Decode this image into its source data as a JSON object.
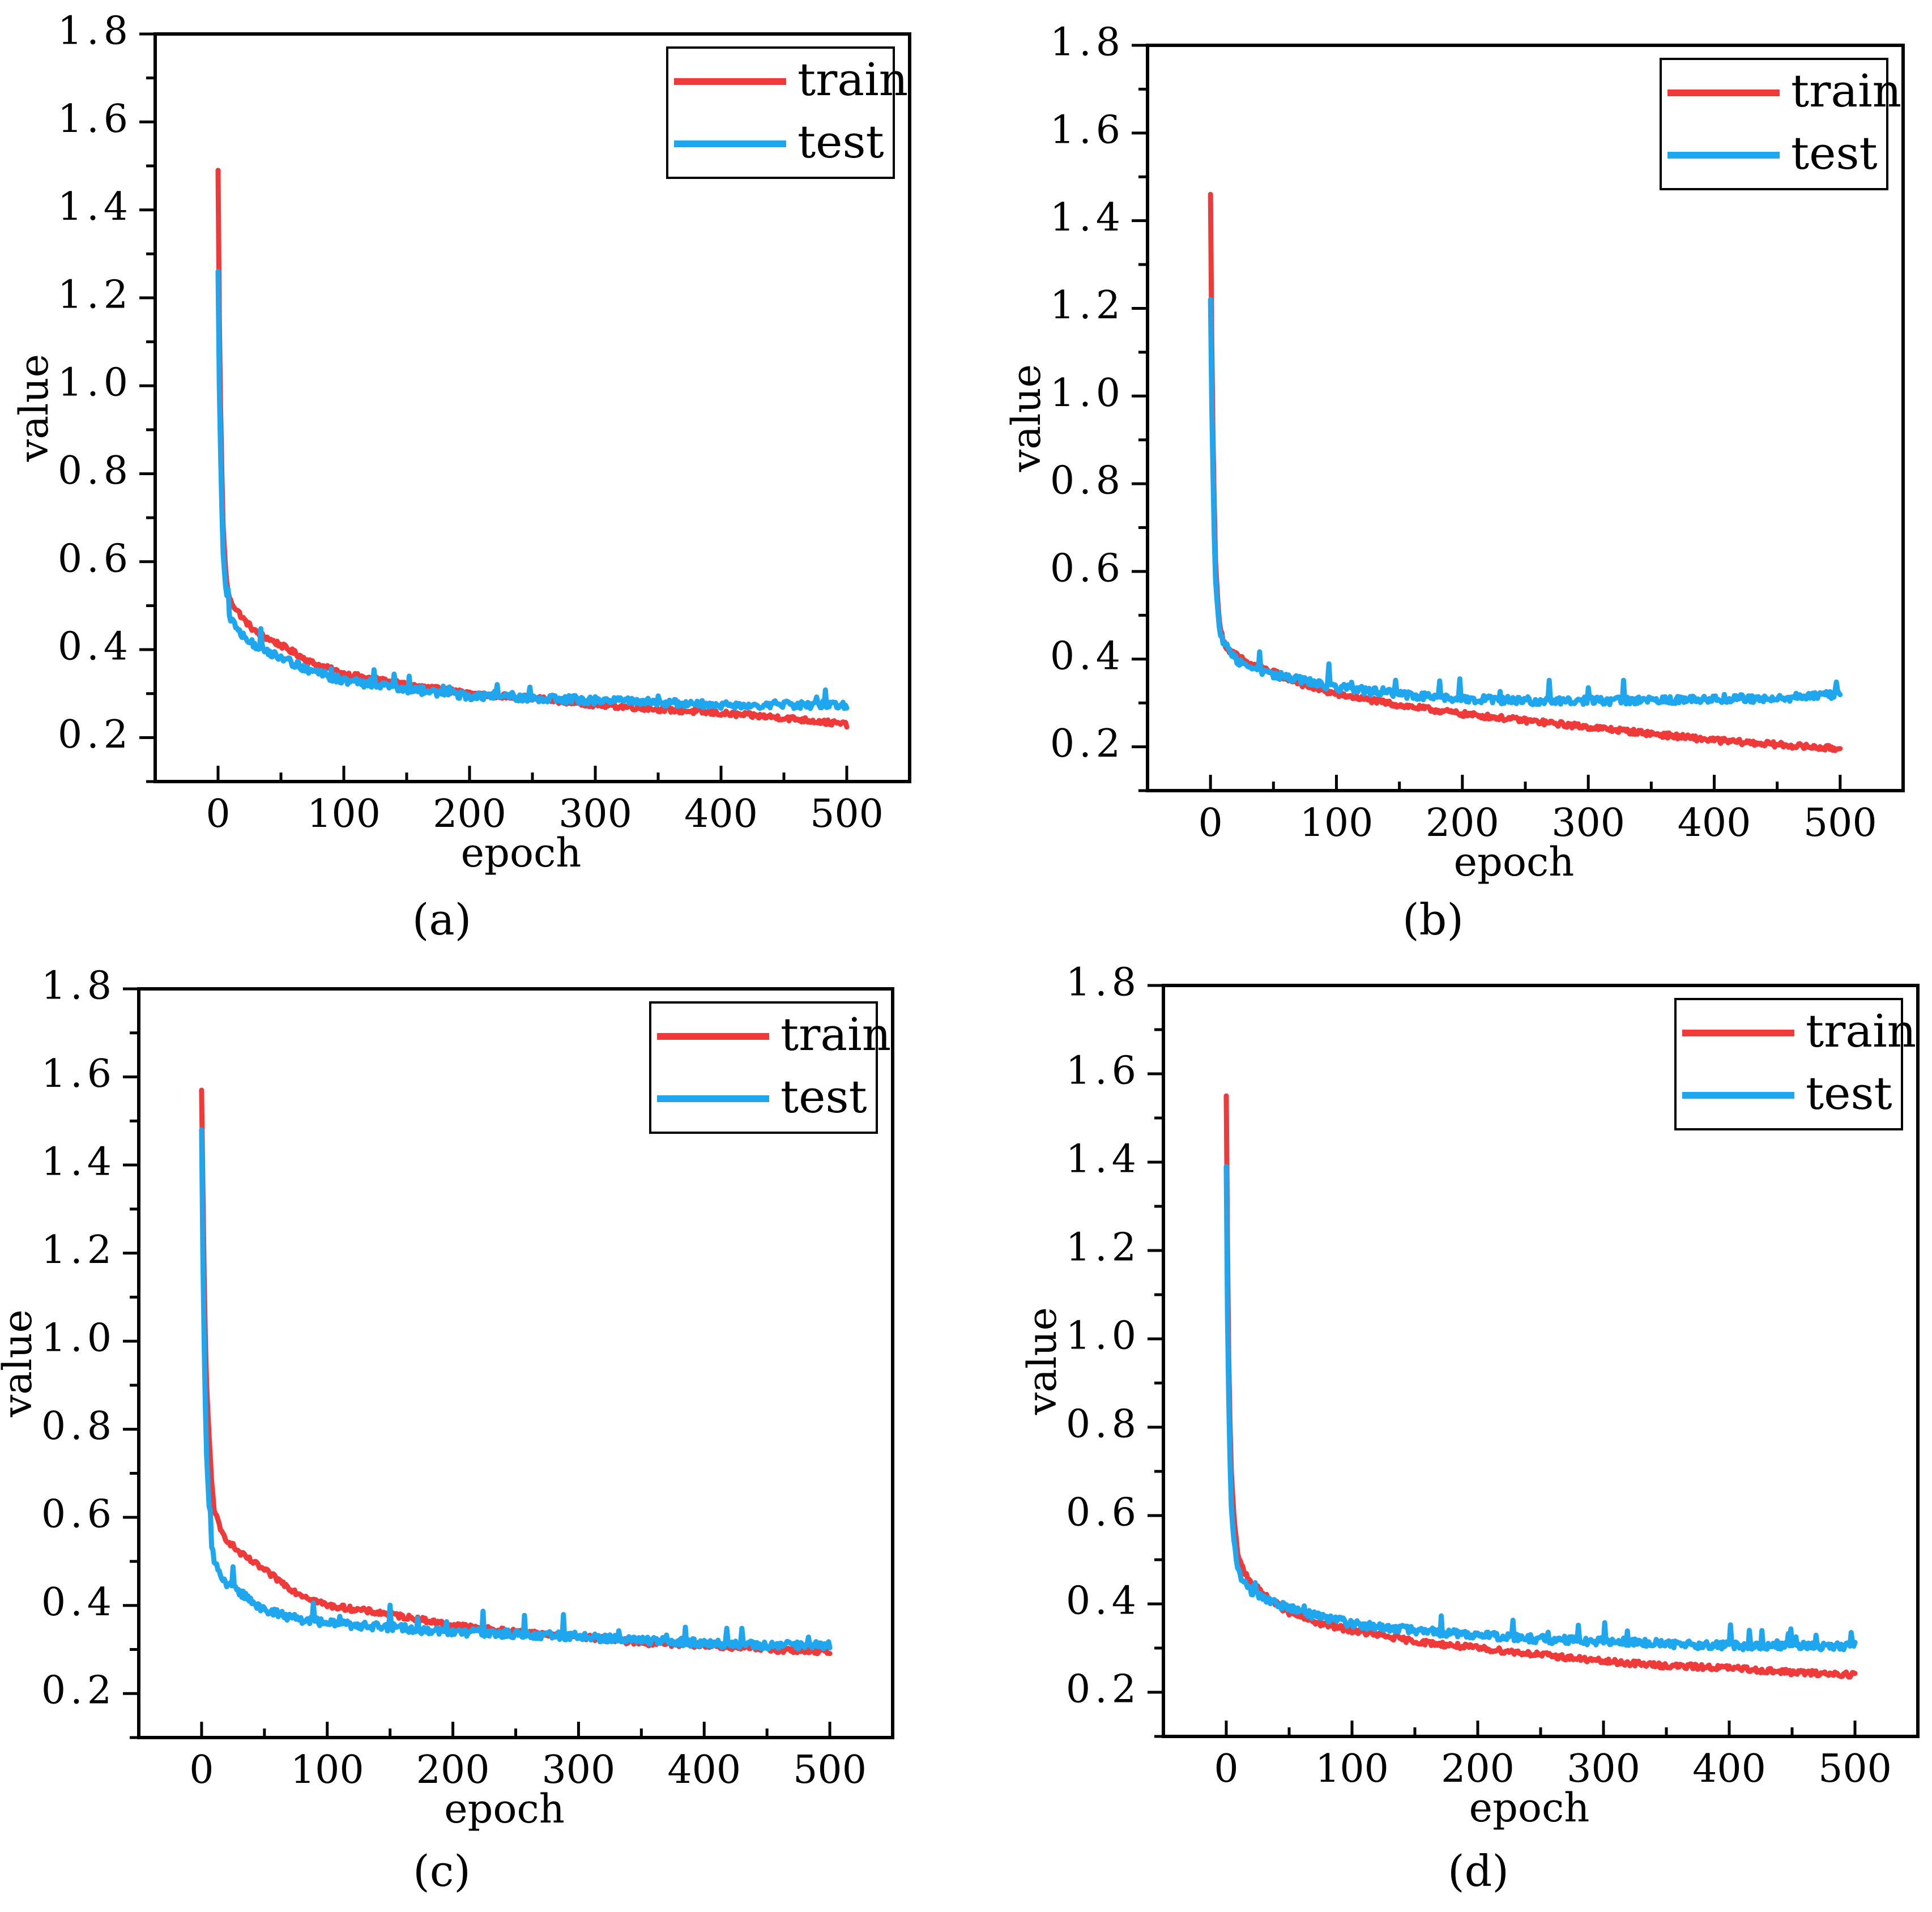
{
  "figure": {
    "panel_labels": [
      "(a)",
      "(b)",
      "(c)",
      "(d)"
    ]
  },
  "colors": {
    "train": "#f03a3a",
    "test": "#1ea6ee",
    "axis": "#000000",
    "background": "#ffffff"
  },
  "chart_data": [
    {
      "id": "a",
      "type": "line",
      "panel_label": "(a)",
      "xlabel": "epoch",
      "ylabel": "value",
      "xlim": [
        -50,
        550
      ],
      "ylim": [
        0.1,
        1.8
      ],
      "xticks": [
        0,
        100,
        200,
        300,
        400,
        500
      ],
      "xtick_labels": [
        "0",
        "100",
        "200",
        "300",
        "400",
        "500"
      ],
      "yticks": [
        0.2,
        0.4,
        0.6,
        0.8,
        1.0,
        1.2,
        1.4,
        1.6,
        1.8
      ],
      "ytick_labels": [
        "0.2",
        "0.4",
        "0.6",
        "0.8",
        "1.0",
        "1.2",
        "1.4",
        "1.6",
        "1.8"
      ],
      "legend": "top-right",
      "grid": false,
      "series": [
        {
          "name": "train",
          "color": "#f03a3a",
          "x": [
            0,
            1,
            2,
            3,
            4,
            6,
            8,
            10,
            15,
            20,
            30,
            50,
            75,
            100,
            150,
            200,
            250,
            300,
            350,
            400,
            450,
            500
          ],
          "values": [
            1.49,
            1.15,
            0.95,
            0.8,
            0.68,
            0.58,
            0.53,
            0.51,
            0.49,
            0.47,
            0.44,
            0.41,
            0.37,
            0.345,
            0.32,
            0.3,
            0.29,
            0.275,
            0.265,
            0.255,
            0.245,
            0.23
          ]
        },
        {
          "name": "test",
          "color": "#1ea6ee",
          "x": [
            0,
            1,
            2,
            3,
            4,
            6,
            8,
            10,
            15,
            20,
            30,
            50,
            75,
            100,
            150,
            200,
            250,
            300,
            350,
            400,
            450,
            500
          ],
          "values": [
            1.26,
            1.0,
            0.85,
            0.72,
            0.62,
            0.54,
            0.5,
            0.47,
            0.45,
            0.43,
            0.41,
            0.38,
            0.35,
            0.33,
            0.31,
            0.295,
            0.29,
            0.285,
            0.28,
            0.275,
            0.275,
            0.275
          ]
        }
      ]
    },
    {
      "id": "b",
      "type": "line",
      "panel_label": "(b)",
      "xlabel": "epoch",
      "ylabel": "value",
      "xlim": [
        -50,
        550
      ],
      "ylim": [
        0.1,
        1.8
      ],
      "xticks": [
        0,
        100,
        200,
        300,
        400,
        500
      ],
      "xtick_labels": [
        "0",
        "100",
        "200",
        "300",
        "400",
        "500"
      ],
      "yticks": [
        0.2,
        0.4,
        0.6,
        0.8,
        1.0,
        1.2,
        1.4,
        1.6,
        1.8
      ],
      "ytick_labels": [
        "0.2",
        "0.4",
        "0.6",
        "0.8",
        "1.0",
        "1.2",
        "1.4",
        "1.6",
        "1.8"
      ],
      "legend": "top-right",
      "grid": false,
      "series": [
        {
          "name": "train",
          "color": "#f03a3a",
          "x": [
            0,
            1,
            2,
            3,
            4,
            6,
            8,
            10,
            15,
            20,
            30,
            50,
            75,
            100,
            150,
            200,
            250,
            300,
            350,
            400,
            450,
            500
          ],
          "values": [
            1.46,
            1.12,
            0.9,
            0.75,
            0.62,
            0.52,
            0.47,
            0.44,
            0.42,
            0.41,
            0.39,
            0.37,
            0.34,
            0.32,
            0.295,
            0.275,
            0.26,
            0.245,
            0.23,
            0.215,
            0.205,
            0.195
          ]
        },
        {
          "name": "test",
          "color": "#1ea6ee",
          "x": [
            0,
            1,
            2,
            3,
            4,
            6,
            8,
            10,
            15,
            20,
            30,
            50,
            75,
            100,
            150,
            200,
            250,
            300,
            350,
            400,
            450,
            500
          ],
          "values": [
            1.22,
            0.98,
            0.82,
            0.68,
            0.58,
            0.5,
            0.46,
            0.44,
            0.42,
            0.4,
            0.38,
            0.365,
            0.35,
            0.335,
            0.32,
            0.31,
            0.305,
            0.305,
            0.305,
            0.31,
            0.31,
            0.32
          ]
        }
      ]
    },
    {
      "id": "c",
      "type": "line",
      "panel_label": "(c)",
      "xlabel": "epoch",
      "ylabel": "value",
      "xlim": [
        -50,
        550
      ],
      "ylim": [
        0.1,
        1.8
      ],
      "xticks": [
        0,
        100,
        200,
        300,
        400,
        500
      ],
      "xtick_labels": [
        "0",
        "100",
        "200",
        "300",
        "400",
        "500"
      ],
      "yticks": [
        0.2,
        0.4,
        0.6,
        0.8,
        1.0,
        1.2,
        1.4,
        1.6,
        1.8
      ],
      "ytick_labels": [
        "0.2",
        "0.4",
        "0.6",
        "0.8",
        "1.0",
        "1.2",
        "1.4",
        "1.6",
        "1.8"
      ],
      "legend": "top-right",
      "grid": false,
      "series": [
        {
          "name": "train",
          "color": "#f03a3a",
          "x": [
            0,
            1,
            2,
            3,
            4,
            6,
            8,
            10,
            15,
            20,
            30,
            50,
            75,
            100,
            150,
            200,
            250,
            300,
            350,
            400,
            450,
            500
          ],
          "values": [
            1.57,
            1.35,
            1.15,
            1.0,
            0.9,
            0.78,
            0.68,
            0.62,
            0.57,
            0.55,
            0.52,
            0.48,
            0.43,
            0.4,
            0.38,
            0.355,
            0.34,
            0.33,
            0.315,
            0.31,
            0.3,
            0.295
          ]
        },
        {
          "name": "test",
          "color": "#1ea6ee",
          "x": [
            0,
            1,
            2,
            3,
            4,
            6,
            8,
            10,
            15,
            20,
            30,
            50,
            75,
            100,
            150,
            200,
            250,
            300,
            350,
            400,
            450,
            500
          ],
          "values": [
            1.48,
            1.2,
            1.0,
            0.85,
            0.74,
            0.62,
            0.54,
            0.5,
            0.47,
            0.45,
            0.43,
            0.39,
            0.37,
            0.36,
            0.35,
            0.34,
            0.335,
            0.33,
            0.32,
            0.315,
            0.31,
            0.31
          ]
        }
      ]
    },
    {
      "id": "d",
      "type": "line",
      "panel_label": "(d)",
      "xlabel": "epoch",
      "ylabel": "value",
      "xlim": [
        -50,
        550
      ],
      "ylim": [
        0.1,
        1.8
      ],
      "xticks": [
        0,
        100,
        200,
        300,
        400,
        500
      ],
      "xtick_labels": [
        "0",
        "100",
        "200",
        "300",
        "400",
        "500"
      ],
      "yticks": [
        0.2,
        0.4,
        0.6,
        0.8,
        1.0,
        1.2,
        1.4,
        1.6,
        1.8
      ],
      "ytick_labels": [
        "0.2",
        "0.4",
        "0.6",
        "0.8",
        "1.0",
        "1.2",
        "1.4",
        "1.6",
        "1.8"
      ],
      "legend": "top-right",
      "grid": false,
      "series": [
        {
          "name": "train",
          "color": "#f03a3a",
          "x": [
            0,
            1,
            2,
            3,
            4,
            6,
            8,
            10,
            15,
            20,
            30,
            50,
            75,
            100,
            150,
            200,
            250,
            300,
            350,
            400,
            450,
            500
          ],
          "values": [
            1.55,
            1.2,
            0.95,
            0.8,
            0.7,
            0.6,
            0.54,
            0.5,
            0.47,
            0.45,
            0.42,
            0.38,
            0.355,
            0.34,
            0.315,
            0.3,
            0.285,
            0.27,
            0.26,
            0.255,
            0.245,
            0.24
          ]
        },
        {
          "name": "test",
          "color": "#1ea6ee",
          "x": [
            0,
            1,
            2,
            3,
            4,
            6,
            8,
            10,
            15,
            20,
            30,
            50,
            75,
            100,
            150,
            200,
            250,
            300,
            350,
            400,
            450,
            500
          ],
          "values": [
            1.39,
            1.05,
            0.86,
            0.72,
            0.62,
            0.54,
            0.5,
            0.47,
            0.45,
            0.43,
            0.41,
            0.39,
            0.37,
            0.355,
            0.34,
            0.33,
            0.32,
            0.315,
            0.31,
            0.305,
            0.305,
            0.305
          ]
        }
      ]
    }
  ]
}
